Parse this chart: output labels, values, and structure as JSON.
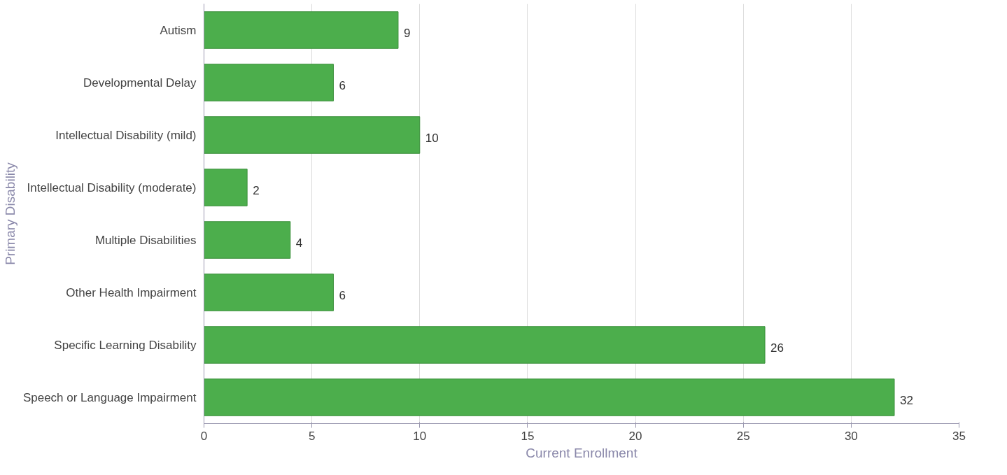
{
  "chart_data": {
    "type": "bar",
    "orientation": "horizontal",
    "xlabel": "Current Enrollment",
    "ylabel": "Primary Disability",
    "categories": [
      "Autism",
      "Developmental Delay",
      "Intellectual Disability (mild)",
      "Intellectual Disability (moderate)",
      "Multiple Disabilities",
      "Other Health Impairment",
      "Specific Learning Disability",
      "Speech or Language Impairment"
    ],
    "values": [
      9,
      6,
      10,
      2,
      4,
      6,
      26,
      32
    ],
    "color": "#4cae4c",
    "xlim": [
      0,
      35
    ],
    "xticks": [
      0,
      5,
      10,
      15,
      20,
      25,
      30,
      35
    ],
    "grid": "x",
    "data_labels": true
  }
}
